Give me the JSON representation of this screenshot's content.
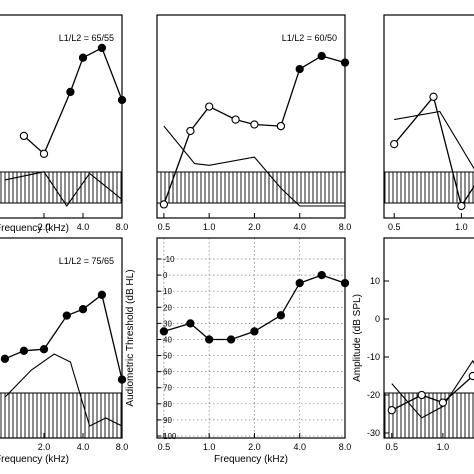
{
  "chart_data": [
    {
      "id": "p1",
      "type": "line",
      "ratio_label": "L1/L2 = 65/55",
      "xlabel": "Frequency (kHz)",
      "xticks": [
        "2.0",
        "4.0",
        "8.0"
      ],
      "series": [
        {
          "kind": "open",
          "points": [
            [
              1.4,
              0.43
            ],
            [
              2.0,
              0.32
            ],
            [
              3.2,
              0.7
            ],
            [
              4.0,
              0.91
            ],
            [
              5.6,
              0.97
            ],
            [
              8.0,
              0.65
            ]
          ]
        },
        {
          "kind": "filled_tail",
          "from_index": 2
        },
        {
          "kind": "noise",
          "points": [
            [
              1.0,
              0.16
            ],
            [
              2.0,
              0.21
            ],
            [
              3.0,
              0.0
            ],
            [
              4.5,
              0.2
            ],
            [
              6.0,
              0.12
            ],
            [
              8.0,
              0.04
            ]
          ]
        }
      ]
    },
    {
      "id": "p2",
      "type": "line",
      "ratio_label": "L1/L2 = 60/50",
      "xlabel": "",
      "xticks": [
        "0.5",
        "1.0",
        "2.0",
        "4.0",
        "8.0"
      ],
      "series": [
        {
          "kind": "open",
          "points": [
            [
              0.5,
              0.01
            ],
            [
              0.75,
              0.46
            ],
            [
              1.0,
              0.61
            ],
            [
              1.5,
              0.53
            ],
            [
              2.0,
              0.5
            ],
            [
              3.0,
              0.49
            ]
          ]
        },
        {
          "kind": "filled",
          "points": [
            [
              3.0,
              0.49
            ],
            [
              4.0,
              0.84
            ],
            [
              5.6,
              0.92
            ],
            [
              8.0,
              0.88
            ]
          ]
        },
        {
          "kind": "noise",
          "points": [
            [
              0.5,
              0.49
            ],
            [
              0.8,
              0.26
            ],
            [
              1.0,
              0.25
            ],
            [
              2.0,
              0.3
            ],
            [
              3.0,
              0.11
            ],
            [
              4.0,
              0.0
            ],
            [
              8.0,
              0.0
            ]
          ]
        }
      ]
    },
    {
      "id": "p3",
      "type": "line",
      "xticks": [
        "0.5",
        "1.0"
      ],
      "series": [
        {
          "kind": "open",
          "points": [
            [
              0.5,
              0.38
            ],
            [
              0.75,
              0.67
            ],
            [
              1.0,
              0.0
            ],
            [
              1.4,
              0.31
            ]
          ]
        },
        {
          "kind": "noise",
          "points": [
            [
              0.5,
              0.53
            ],
            [
              0.8,
              0.58
            ],
            [
              1.3,
              0.1
            ]
          ]
        }
      ]
    },
    {
      "id": "p4",
      "type": "line",
      "ratio_label": "L1/L2 = 75/65",
      "xlabel": "Frequency (kHz)",
      "xticks": [
        "2.0",
        "4.0",
        "8.0"
      ],
      "series": [
        {
          "kind": "filled",
          "points": [
            [
              1.0,
              0.42
            ],
            [
              1.4,
              0.47
            ],
            [
              2.0,
              0.48
            ],
            [
              3.0,
              0.69
            ],
            [
              4.0,
              0.73
            ],
            [
              5.6,
              0.82
            ],
            [
              8.0,
              0.29
            ]
          ]
        },
        {
          "kind": "noise",
          "points": [
            [
              1.0,
              0.18
            ],
            [
              1.6,
              0.35
            ],
            [
              2.4,
              0.45
            ],
            [
              3.2,
              0.4
            ],
            [
              4.5,
              0.0
            ],
            [
              6.0,
              0.05
            ],
            [
              8.0,
              0.0
            ]
          ]
        }
      ]
    },
    {
      "id": "audiogram",
      "type": "line",
      "xlabel": "Frequency (kHz)",
      "ylabel": "Audiometric Threshold (dB HL)",
      "xticks": [
        "0.5",
        "1.0",
        "2.0",
        "4.0",
        "8.0"
      ],
      "yticks": [
        "-10",
        "0",
        "10",
        "20",
        "30",
        "40",
        "50",
        "60",
        "70",
        "80",
        "90",
        "100"
      ],
      "ylim": [
        -10,
        100
      ],
      "y_inverted": true,
      "grid": true,
      "series": [
        {
          "kind": "filled",
          "points": [
            [
              0.5,
              35
            ],
            [
              0.75,
              30
            ],
            [
              1.0,
              40
            ],
            [
              1.4,
              40
            ],
            [
              2.0,
              35
            ],
            [
              3.0,
              25
            ],
            [
              4.0,
              5
            ],
            [
              5.6,
              0
            ],
            [
              8.0,
              5
            ]
          ]
        }
      ]
    },
    {
      "id": "p6",
      "type": "line",
      "ylabel": "Amplitude (dB SPL)",
      "xticks": [
        "0.5",
        "1.0"
      ],
      "yticks": [
        "10",
        "0",
        "-10",
        "-20",
        "-30"
      ],
      "ylim": [
        -30,
        10
      ],
      "series": [
        {
          "kind": "open",
          "points": [
            [
              0.5,
              -24
            ],
            [
              0.75,
              -20
            ],
            [
              1.0,
              -22
            ],
            [
              1.5,
              -15
            ],
            [
              2.0,
              -20
            ]
          ]
        },
        {
          "kind": "noise",
          "points": [
            [
              0.5,
              -17
            ],
            [
              0.75,
              -26
            ],
            [
              1.0,
              -23
            ],
            [
              1.5,
              -11
            ],
            [
              2.0,
              -21
            ]
          ]
        }
      ]
    }
  ]
}
